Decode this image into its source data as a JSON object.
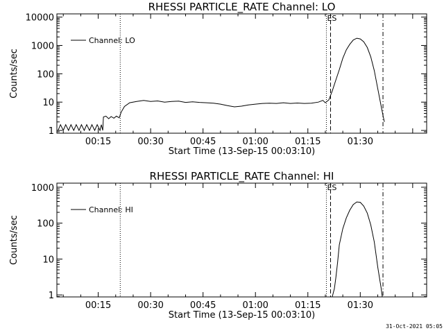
{
  "footer": {
    "timestamp": "31-Oct-2021 05:05"
  },
  "chart_data": [
    {
      "type": "line",
      "title": "RHESSI PARTICLE_RATE Channel: LO",
      "xlabel": "Start Time (13-Sep-15 00:03:10)",
      "ylabel": "Counts/sec",
      "yscale": "log",
      "ylim": [
        0.8,
        13000
      ],
      "xlim_minutes": [
        3.17,
        109
      ],
      "xticks": [
        {
          "t": 15,
          "label": "00:15"
        },
        {
          "t": 30,
          "label": "00:30"
        },
        {
          "t": 45,
          "label": "00:45"
        },
        {
          "t": 60,
          "label": "01:00"
        },
        {
          "t": 75,
          "label": "01:15"
        },
        {
          "t": 90,
          "label": "01:30"
        }
      ],
      "yticks": [
        {
          "v": 1,
          "label": "1"
        },
        {
          "v": 10,
          "label": "10"
        },
        {
          "v": 100,
          "label": "100"
        },
        {
          "v": 1000,
          "label": "1000"
        },
        {
          "v": 10000,
          "label": "10000"
        }
      ],
      "legend": {
        "label": "Channel: LO",
        "position": "top-left"
      },
      "markers": [
        {
          "t": 21.3,
          "style": "dotted",
          "label": ""
        },
        {
          "t": 80.3,
          "style": "dotted",
          "label": "ES"
        },
        {
          "t": 81.5,
          "style": "dashed",
          "label": ""
        },
        {
          "t": 96.5,
          "style": "dashdot",
          "label": ""
        }
      ],
      "series": [
        {
          "name": "Channel: LO",
          "points": [
            [
              3.5,
              1
            ],
            [
              4.2,
              1.6
            ],
            [
              5,
              1
            ],
            [
              5.7,
              1.6
            ],
            [
              6.5,
              1
            ],
            [
              7.2,
              1.6
            ],
            [
              8,
              1
            ],
            [
              8.7,
              1.6
            ],
            [
              9.5,
              1
            ],
            [
              10.2,
              1.6
            ],
            [
              11,
              1
            ],
            [
              11.7,
              1.6
            ],
            [
              12.5,
              1
            ],
            [
              13.2,
              1.6
            ],
            [
              14,
              1
            ],
            [
              14.7,
              1.6
            ],
            [
              15.5,
              1
            ],
            [
              15.9,
              1.6
            ],
            [
              16.3,
              1
            ],
            [
              16.5,
              3
            ],
            [
              17.2,
              3.2
            ],
            [
              18,
              2.6
            ],
            [
              18.7,
              3.1
            ],
            [
              19.5,
              2.7
            ],
            [
              20.2,
              3.2
            ],
            [
              21,
              2.8
            ],
            [
              21.6,
              4.5
            ],
            [
              22.5,
              7
            ],
            [
              24,
              9.5
            ],
            [
              26,
              10.5
            ],
            [
              28,
              11.5
            ],
            [
              30,
              10.5
            ],
            [
              32,
              11
            ],
            [
              34,
              10
            ],
            [
              36,
              10.5
            ],
            [
              38,
              10.8
            ],
            [
              40,
              9.8
            ],
            [
              42,
              10.2
            ],
            [
              44,
              9.8
            ],
            [
              46,
              9.5
            ],
            [
              48,
              9.2
            ],
            [
              50,
              8.5
            ],
            [
              52,
              7.5
            ],
            [
              54,
              6.8
            ],
            [
              56,
              7.2
            ],
            [
              58,
              8
            ],
            [
              60,
              8.5
            ],
            [
              62,
              9
            ],
            [
              64,
              9.2
            ],
            [
              66,
              9
            ],
            [
              68,
              9.5
            ],
            [
              70,
              9
            ],
            [
              72,
              9.3
            ],
            [
              74,
              9
            ],
            [
              76,
              9.2
            ],
            [
              78,
              10
            ],
            [
              79.3,
              11.5
            ],
            [
              80,
              9.5
            ],
            [
              81,
              12
            ],
            [
              82,
              25
            ],
            [
              83,
              60
            ],
            [
              84,
              140
            ],
            [
              85,
              350
            ],
            [
              86,
              700
            ],
            [
              87,
              1100
            ],
            [
              88,
              1550
            ],
            [
              89,
              1800
            ],
            [
              90,
              1700
            ],
            [
              91,
              1350
            ],
            [
              92,
              850
            ],
            [
              93,
              400
            ],
            [
              94,
              130
            ],
            [
              95,
              30
            ],
            [
              96,
              7
            ],
            [
              96.6,
              3
            ],
            [
              96.9,
              2
            ]
          ]
        }
      ]
    },
    {
      "type": "line",
      "title": "RHESSI PARTICLE_RATE Channel: HI",
      "xlabel": "Start Time (13-Sep-15 00:03:10)",
      "ylabel": "Counts/sec",
      "yscale": "log",
      "ylim": [
        0.88,
        1300
      ],
      "xlim_minutes": [
        3.17,
        109
      ],
      "xticks": [
        {
          "t": 15,
          "label": "00:15"
        },
        {
          "t": 30,
          "label": "00:30"
        },
        {
          "t": 45,
          "label": "00:45"
        },
        {
          "t": 60,
          "label": "01:00"
        },
        {
          "t": 75,
          "label": "01:15"
        },
        {
          "t": 90,
          "label": "01:30"
        }
      ],
      "yticks": [
        {
          "v": 1,
          "label": "1"
        },
        {
          "v": 10,
          "label": "10"
        },
        {
          "v": 100,
          "label": "100"
        },
        {
          "v": 1000,
          "label": "1000"
        }
      ],
      "legend": {
        "label": "Channel: HI",
        "position": "top-left"
      },
      "markers": [
        {
          "t": 21.3,
          "style": "dotted",
          "label": ""
        },
        {
          "t": 80.3,
          "style": "dotted",
          "label": "ES"
        },
        {
          "t": 81.5,
          "style": "dashed",
          "label": ""
        },
        {
          "t": 96.5,
          "style": "dashdot",
          "label": ""
        }
      ],
      "series": [
        {
          "name": "Channel: HI",
          "points": [
            [
              82,
              0.9
            ],
            [
              82.6,
              1.5
            ],
            [
              83,
              3
            ],
            [
              83.5,
              8
            ],
            [
              84,
              25
            ],
            [
              85,
              70
            ],
            [
              86,
              140
            ],
            [
              87,
              230
            ],
            [
              88,
              330
            ],
            [
              89,
              390
            ],
            [
              90,
              380
            ],
            [
              91,
              300
            ],
            [
              92,
              190
            ],
            [
              93,
              90
            ],
            [
              94,
              30
            ],
            [
              95,
              6
            ],
            [
              96,
              1.5
            ],
            [
              96.3,
              0.9
            ]
          ]
        }
      ]
    }
  ]
}
